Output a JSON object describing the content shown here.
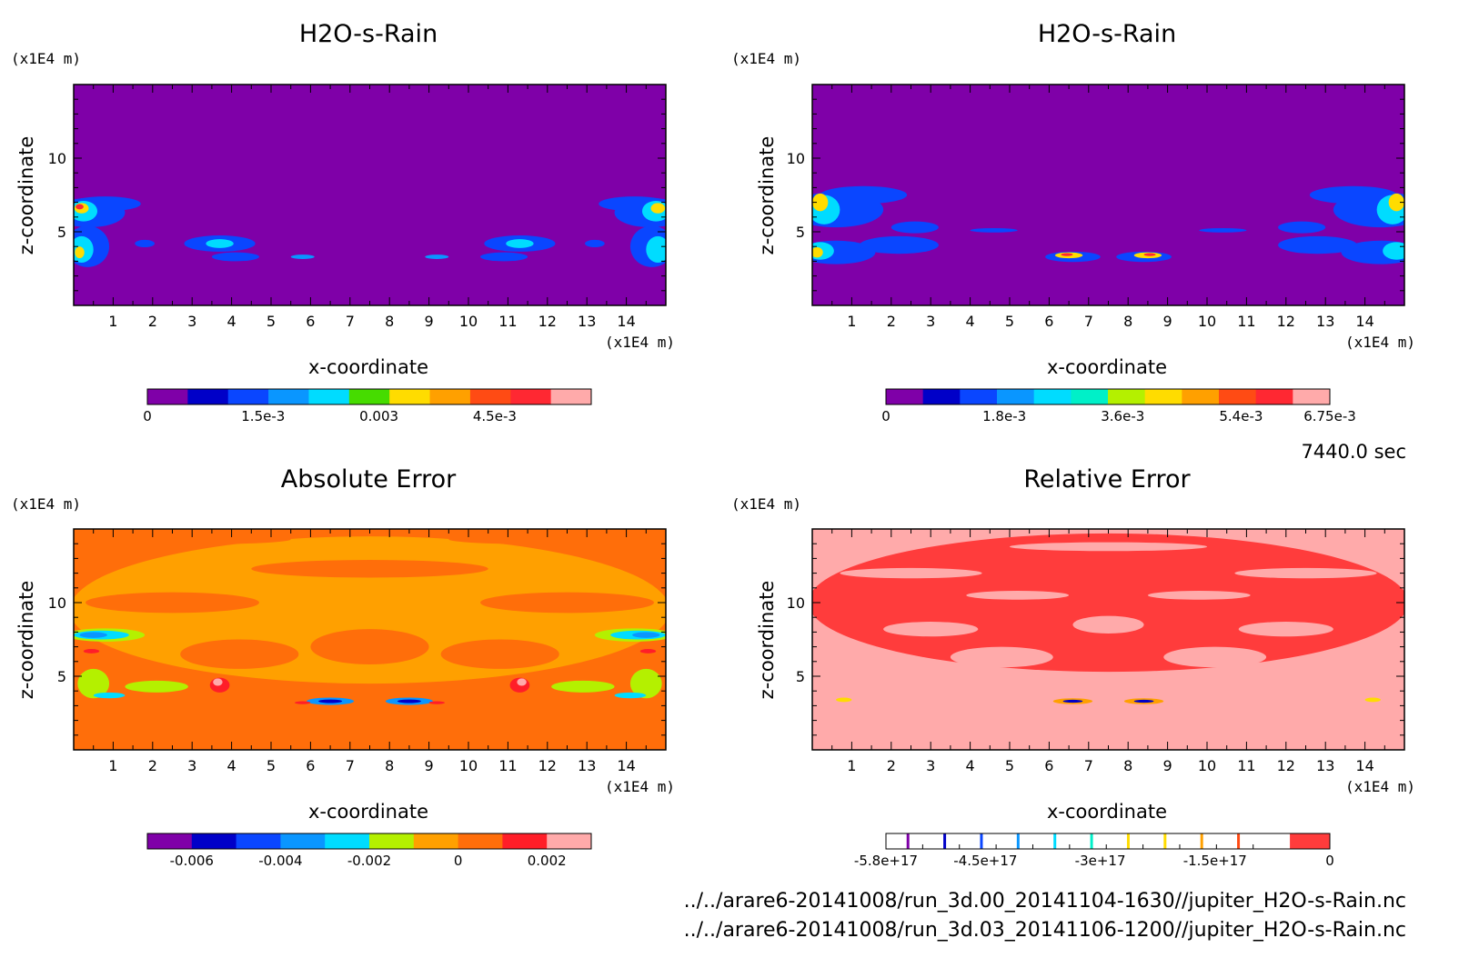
{
  "chart_data": [
    {
      "type": "heatmap",
      "title": "H2O-s-Rain",
      "xlabel": "x-coordinate",
      "ylabel": "z-coordinate",
      "x_unit": "(x1E4 m)",
      "y_unit": "(x1E4 m)",
      "xlim": [
        0,
        15
      ],
      "ylim": [
        0,
        15
      ],
      "x_ticks": [
        1,
        2,
        3,
        4,
        5,
        6,
        7,
        8,
        9,
        10,
        11,
        12,
        13,
        14
      ],
      "y_ticks": [
        5,
        10
      ],
      "background_color": "#7f00a8",
      "colorbar": {
        "colors": [
          "#7f00a8",
          "#0000c8",
          "#0a46ff",
          "#0a96ff",
          "#00dcff",
          "#46dc00",
          "#ffdc00",
          "#ffa000",
          "#ff4b14",
          "#ff2832",
          "#ffaaaa"
        ],
        "tick_values": [
          0,
          0.0015,
          0.003,
          0.0045
        ],
        "tick_labels": [
          "0",
          "1.5e-3",
          "0.003",
          "4.5e-3"
        ],
        "range": [
          0,
          0.00575
        ]
      }
    },
    {
      "type": "heatmap",
      "title": "H2O-s-Rain",
      "xlabel": "x-coordinate",
      "ylabel": "z-coordinate",
      "x_unit": "(x1E4 m)",
      "y_unit": "(x1E4 m)",
      "xlim": [
        0,
        15
      ],
      "ylim": [
        0,
        15
      ],
      "x_ticks": [
        1,
        2,
        3,
        4,
        5,
        6,
        7,
        8,
        9,
        10,
        11,
        12,
        13,
        14
      ],
      "y_ticks": [
        5,
        10
      ],
      "background_color": "#7f00a8",
      "colorbar": {
        "colors": [
          "#7f00a8",
          "#0000c8",
          "#0a46ff",
          "#0a96ff",
          "#00dcff",
          "#00f0c8",
          "#b4f000",
          "#ffdc00",
          "#ffa000",
          "#ff4b14",
          "#ff2832",
          "#ffaaaa"
        ],
        "tick_values": [
          0,
          0.0018,
          0.0036,
          0.0054,
          0.00675
        ],
        "tick_labels": [
          "0",
          "1.8e-3",
          "3.6e-3",
          "5.4e-3",
          "6.75e-3"
        ],
        "range": [
          0,
          0.00675
        ]
      }
    },
    {
      "type": "heatmap",
      "title": "Absolute Error",
      "xlabel": "x-coordinate",
      "ylabel": "z-coordinate",
      "x_unit": "(x1E4 m)",
      "y_unit": "(x1E4 m)",
      "xlim": [
        0,
        15
      ],
      "ylim": [
        0,
        15
      ],
      "x_ticks": [
        1,
        2,
        3,
        4,
        5,
        6,
        7,
        8,
        9,
        10,
        11,
        12,
        13,
        14
      ],
      "y_ticks": [
        5,
        10
      ],
      "background_color": "#ff6e0a",
      "colorbar": {
        "colors": [
          "#7f00a8",
          "#0000c8",
          "#0a46ff",
          "#0a96ff",
          "#00dcff",
          "#b4f000",
          "#ffa000",
          "#ff6e0a",
          "#ff1e28",
          "#ffaaaa"
        ],
        "tick_values": [
          -0.006,
          -0.004,
          -0.002,
          0,
          0.002
        ],
        "tick_labels": [
          "-0.006",
          "-0.004",
          "-0.002",
          "0",
          "0.002"
        ],
        "range": [
          -0.007,
          0.003
        ]
      }
    },
    {
      "type": "heatmap",
      "title": "Relative Error",
      "xlabel": "x-coordinate",
      "ylabel": "z-coordinate",
      "x_unit": "(x1E4 m)",
      "y_unit": "(x1E4 m)",
      "xlim": [
        0,
        15
      ],
      "ylim": [
        0,
        15
      ],
      "x_ticks": [
        1,
        2,
        3,
        4,
        5,
        6,
        7,
        8,
        9,
        10,
        11,
        12,
        13,
        14
      ],
      "y_ticks": [
        5,
        10
      ],
      "background_color": "#ffaaaa",
      "colorbar": {
        "colors": [
          "#ffffff",
          "#ff3c3c"
        ],
        "line_colors": [
          "#7f00a8",
          "#0000c8",
          "#0a46ff",
          "#0a96ff",
          "#00dcff",
          "#00f0c8",
          "#ffdc00",
          "#ffdc00",
          "#ffa000",
          "#ff4b14"
        ],
        "tick_values": [
          -5.8e+17,
          -4.5e+17,
          -3e+17,
          -1.5e+17,
          0
        ],
        "tick_labels": [
          "-5.8e+17",
          "-4.5e+17",
          "-3e+17",
          "-1.5e+17",
          "0"
        ],
        "range": [
          -5.8e+17,
          0
        ]
      }
    }
  ],
  "time_label": "7440.0 sec",
  "file_paths": [
    "../../arare6-20141008/run_3d.00_20141104-1630//jupiter_H2O-s-Rain.nc",
    "../../arare6-20141008/run_3d.03_20141106-1200//jupiter_H2O-s-Rain.nc"
  ]
}
